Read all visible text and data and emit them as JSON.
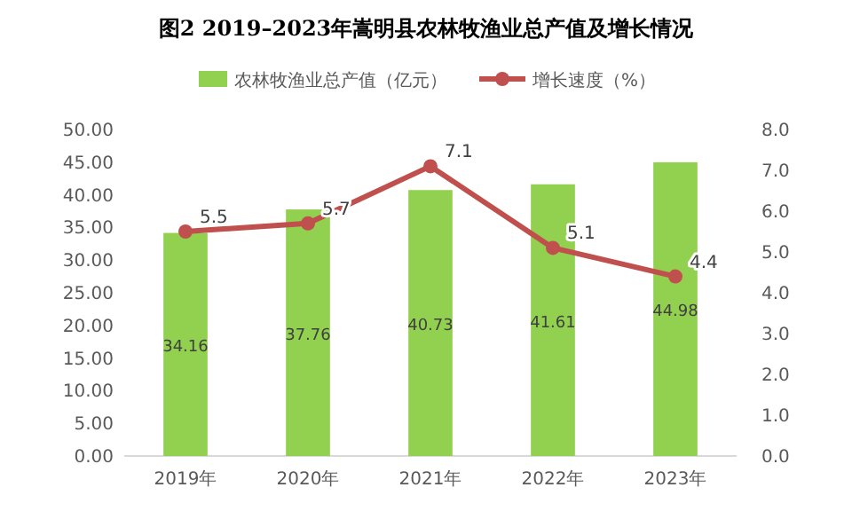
{
  "chart_data": {
    "type": "bar",
    "title": "图2  2019–2023年嵩明县农林牧渔业总产值及增长情况",
    "categories": [
      "2019年",
      "2020年",
      "2021年",
      "2022年",
      "2023年"
    ],
    "series": [
      {
        "name": "农林牧渔业总产值（亿元）",
        "color": "#92d050",
        "values": [
          34.16,
          37.76,
          40.73,
          41.61,
          44.98
        ]
      },
      {
        "name": "增长速度（%）",
        "type": "line",
        "axis": "y2",
        "color": "#c0504d",
        "marker": "circle",
        "values": [
          5.5,
          5.7,
          7.1,
          5.1,
          4.4
        ]
      }
    ],
    "ylim": [
      0,
      50
    ],
    "yticks": [
      {
        "value": 0,
        "label": "0.00"
      },
      {
        "value": 5,
        "label": "5.00"
      },
      {
        "value": 10,
        "label": "10.00"
      },
      {
        "value": 15,
        "label": "15.00"
      },
      {
        "value": 20,
        "label": "20.00"
      },
      {
        "value": 25,
        "label": "25.00"
      },
      {
        "value": 30,
        "label": "30.00"
      },
      {
        "value": 35,
        "label": "35.00"
      },
      {
        "value": 40,
        "label": "40.00"
      },
      {
        "value": 45,
        "label": "45.00"
      },
      {
        "value": 50,
        "label": "50.00"
      }
    ],
    "y2lim": [
      0,
      8
    ],
    "y2ticks": [
      {
        "value": 0,
        "label": "0.0"
      },
      {
        "value": 1,
        "label": "1.0"
      },
      {
        "value": 2,
        "label": "2.0"
      },
      {
        "value": 3,
        "label": "3.0"
      },
      {
        "value": 4,
        "label": "4.0"
      },
      {
        "value": 5,
        "label": "5.0"
      },
      {
        "value": 6,
        "label": "6.0"
      },
      {
        "value": 7,
        "label": "7.0"
      },
      {
        "value": 8,
        "label": "8.0"
      }
    ],
    "data_labels": true,
    "legend": "top",
    "grid": false
  }
}
